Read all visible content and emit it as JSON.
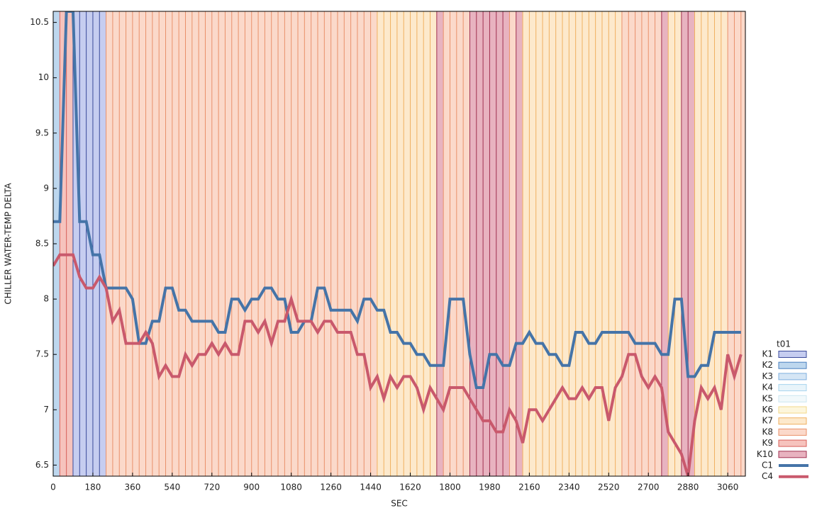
{
  "chart_data": {
    "type": "line",
    "x_label": "SEC",
    "y_label": "CHILLER WATER-TEMP DELTA",
    "legend_title": "t01",
    "xlim": [
      0,
      3140
    ],
    "ylim": [
      6.4,
      10.6
    ],
    "xticks": [
      0,
      180,
      360,
      540,
      720,
      900,
      1080,
      1260,
      1440,
      1620,
      1800,
      1980,
      2160,
      2340,
      2520,
      2700,
      2880,
      3060
    ],
    "yticks": [
      6.5,
      7,
      7.5,
      8,
      8.5,
      9,
      9.5,
      10,
      10.5
    ],
    "x": [
      0,
      30,
      60,
      90,
      120,
      150,
      180,
      210,
      240,
      270,
      300,
      330,
      360,
      390,
      420,
      450,
      480,
      510,
      540,
      570,
      600,
      630,
      660,
      690,
      720,
      750,
      780,
      810,
      840,
      870,
      900,
      930,
      960,
      990,
      1020,
      1050,
      1080,
      1110,
      1140,
      1170,
      1200,
      1230,
      1260,
      1290,
      1320,
      1350,
      1380,
      1410,
      1440,
      1470,
      1500,
      1530,
      1560,
      1590,
      1620,
      1650,
      1680,
      1710,
      1740,
      1770,
      1800,
      1830,
      1860,
      1890,
      1920,
      1950,
      1980,
      2010,
      2040,
      2070,
      2100,
      2130,
      2160,
      2190,
      2220,
      2250,
      2280,
      2310,
      2340,
      2370,
      2400,
      2430,
      2460,
      2490,
      2520,
      2550,
      2580,
      2610,
      2640,
      2670,
      2700,
      2730,
      2760,
      2790,
      2820,
      2850,
      2880,
      2910,
      2940,
      2970,
      3000,
      3030,
      3060,
      3090,
      3120
    ],
    "band_legend": [
      {
        "name": "K1",
        "fill": "#c6cdf0",
        "stroke": "#3a4a9a"
      },
      {
        "name": "K2",
        "fill": "#bdd7ee",
        "stroke": "#4a7fbf"
      },
      {
        "name": "K3",
        "fill": "#d5e6f5",
        "stroke": "#7fb0e0"
      },
      {
        "name": "K4",
        "fill": "#e8f4fa",
        "stroke": "#a8d4ee"
      },
      {
        "name": "K5",
        "fill": "#f2f9fb",
        "stroke": "#cce6f0"
      },
      {
        "name": "K6",
        "fill": "#fdf6dc",
        "stroke": "#f2d88a"
      },
      {
        "name": "K7",
        "fill": "#fde9cc",
        "stroke": "#f0b060"
      },
      {
        "name": "K8",
        "fill": "#fbd9ca",
        "stroke": "#e9906a"
      },
      {
        "name": "K9",
        "fill": "#f6c3bd",
        "stroke": "#d8605a"
      },
      {
        "name": "K10",
        "fill": "#e8b3c0",
        "stroke": "#a03050"
      }
    ],
    "bands": [
      "K2",
      "K9",
      "K9",
      "K1",
      "K1",
      "K1",
      "K1",
      "K1",
      "K8",
      "K8",
      "K8",
      "K8",
      "K8",
      "K8",
      "K8",
      "K8",
      "K8",
      "K8",
      "K8",
      "K8",
      "K8",
      "K8",
      "K8",
      "K8",
      "K8",
      "K8",
      "K8",
      "K8",
      "K8",
      "K8",
      "K8",
      "K8",
      "K8",
      "K8",
      "K8",
      "K8",
      "K8",
      "K8",
      "K8",
      "K8",
      "K8",
      "K8",
      "K8",
      "K8",
      "K8",
      "K8",
      "K8",
      "K8",
      "K8",
      "K7",
      "K7",
      "K7",
      "K7",
      "K7",
      "K7",
      "K7",
      "K7",
      "K7",
      "K10",
      "K8",
      "K8",
      "K8",
      "K8",
      "K10",
      "K10",
      "K10",
      "K10",
      "K10",
      "K10",
      "K8",
      "K10",
      "K7",
      "K7",
      "K7",
      "K7",
      "K7",
      "K7",
      "K7",
      "K7",
      "K7",
      "K7",
      "K7",
      "K7",
      "K7",
      "K7",
      "K7",
      "K8",
      "K8",
      "K8",
      "K8",
      "K8",
      "K8",
      "K10",
      "K7",
      "K7",
      "K10",
      "K10",
      "K7",
      "K7",
      "K7",
      "K7",
      "K7",
      "K8",
      "K8",
      "K8"
    ],
    "series": [
      {
        "name": "C1",
        "color": "#4574a8",
        "values": [
          8.7,
          8.7,
          10.6,
          10.6,
          8.7,
          8.7,
          8.4,
          8.4,
          8.1,
          8.1,
          8.1,
          8.1,
          8.0,
          7.6,
          7.6,
          7.8,
          7.8,
          8.1,
          8.1,
          7.9,
          7.9,
          7.8,
          7.8,
          7.8,
          7.8,
          7.7,
          7.7,
          8.0,
          8.0,
          7.9,
          8.0,
          8.0,
          8.1,
          8.1,
          8.0,
          8.0,
          7.7,
          7.7,
          7.8,
          7.8,
          8.1,
          8.1,
          7.9,
          7.9,
          7.9,
          7.9,
          7.8,
          8.0,
          8.0,
          7.9,
          7.9,
          7.7,
          7.7,
          7.6,
          7.6,
          7.5,
          7.5,
          7.4,
          7.4,
          7.4,
          8.0,
          8.0,
          8.0,
          7.5,
          7.2,
          7.2,
          7.5,
          7.5,
          7.4,
          7.4,
          7.6,
          7.6,
          7.7,
          7.6,
          7.6,
          7.5,
          7.5,
          7.4,
          7.4,
          7.7,
          7.7,
          7.6,
          7.6,
          7.7,
          7.7,
          7.7,
          7.7,
          7.7,
          7.6,
          7.6,
          7.6,
          7.6,
          7.5,
          7.5,
          8.0,
          8.0,
          7.3,
          7.3,
          7.4,
          7.4,
          7.7,
          7.7,
          7.7,
          7.7,
          7.7
        ]
      },
      {
        "name": "C4",
        "color": "#c9596c",
        "values": [
          8.3,
          8.4,
          8.4,
          8.4,
          8.2,
          8.1,
          8.1,
          8.2,
          8.1,
          7.8,
          7.9,
          7.6,
          7.6,
          7.6,
          7.7,
          7.6,
          7.3,
          7.4,
          7.3,
          7.3,
          7.5,
          7.4,
          7.5,
          7.5,
          7.6,
          7.5,
          7.6,
          7.5,
          7.5,
          7.8,
          7.8,
          7.7,
          7.8,
          7.6,
          7.8,
          7.8,
          8.0,
          7.8,
          7.8,
          7.8,
          7.7,
          7.8,
          7.8,
          7.7,
          7.7,
          7.7,
          7.5,
          7.5,
          7.2,
          7.3,
          7.1,
          7.3,
          7.2,
          7.3,
          7.3,
          7.2,
          7.0,
          7.2,
          7.1,
          7.0,
          7.2,
          7.2,
          7.2,
          7.1,
          7.0,
          6.9,
          6.9,
          6.8,
          6.8,
          7.0,
          6.9,
          6.7,
          7.0,
          7.0,
          6.9,
          7.0,
          7.1,
          7.2,
          7.1,
          7.1,
          7.2,
          7.1,
          7.2,
          7.2,
          6.9,
          7.2,
          7.3,
          7.5,
          7.5,
          7.3,
          7.2,
          7.3,
          7.2,
          6.8,
          6.7,
          6.6,
          6.4,
          6.9,
          7.2,
          7.1,
          7.2,
          7.0,
          7.5,
          7.3,
          7.5
        ]
      }
    ]
  }
}
